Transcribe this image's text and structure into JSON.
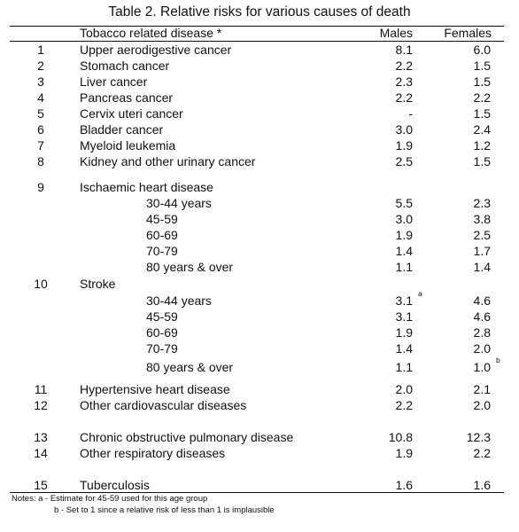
{
  "table": {
    "caption": "Table 2.  Relative risks for various causes of death",
    "header": {
      "disease": "Tobacco related disease *",
      "males": "Males",
      "females": "Females"
    },
    "rows": [
      {
        "num": "1",
        "label": "Upper aerodigestive cancer",
        "males": "8.1",
        "females": "6.0"
      },
      {
        "num": "2",
        "label": "Stomach cancer",
        "males": "2.2",
        "females": "1.5"
      },
      {
        "num": "3",
        "label": "Liver cancer",
        "males": "2.3",
        "females": "1.5"
      },
      {
        "num": "4",
        "label": "Pancreas cancer",
        "males": "2.2",
        "females": "2.2"
      },
      {
        "num": "5",
        "label": "Cervix uteri cancer",
        "males": "-",
        "females": "1.5"
      },
      {
        "num": "6",
        "label": "Bladder cancer",
        "males": "3.0",
        "females": "2.4"
      },
      {
        "num": "7",
        "label": "Myeloid leukemia",
        "males": "1.9",
        "females": "1.2"
      },
      {
        "num": "8",
        "label": "Kidney and other urinary cancer",
        "males": "2.5",
        "females": "1.5"
      },
      {
        "num": "9",
        "label": "Ischaemic heart disease",
        "males": "",
        "females": ""
      },
      {
        "num": "",
        "label": "30-44 years",
        "males": "5.5",
        "females": "2.3"
      },
      {
        "num": "",
        "label": "45-59",
        "males": "3.0",
        "females": "3.8"
      },
      {
        "num": "",
        "label": "60-69",
        "males": "1.9",
        "females": "2.5"
      },
      {
        "num": "",
        "label": "70-79",
        "males": "1.4",
        "females": "1.7"
      },
      {
        "num": "",
        "label": "80 years & over",
        "males": "1.1",
        "females": "1.4"
      },
      {
        "num": "10",
        "label": "Stroke",
        "males": "",
        "females": ""
      },
      {
        "num": "",
        "label": "30-44 years",
        "males": "3.1",
        "females": "4.6",
        "males_note": "a"
      },
      {
        "num": "",
        "label": "45-59",
        "males": "3.1",
        "females": "4.6"
      },
      {
        "num": "",
        "label": "60-69",
        "males": "1.9",
        "females": "2.8"
      },
      {
        "num": "",
        "label": "70-79",
        "males": "1.4",
        "females": "2.0"
      },
      {
        "num": "",
        "label": "80 years & over",
        "males": "1.1",
        "females": "1.0",
        "females_note": "b"
      },
      {
        "num": "11",
        "label": "Hypertensive heart disease",
        "males": "2.0",
        "females": "2.1"
      },
      {
        "num": "12",
        "label": "Other cardiovascular diseases",
        "males": "2.2",
        "females": "2.0"
      },
      {
        "num": "13",
        "label": "Chronic obstructive pulmonary disease",
        "males": "10.8",
        "females": "12.3"
      },
      {
        "num": "14",
        "label": "Other respiratory diseases",
        "males": "1.9",
        "females": "2.2"
      },
      {
        "num": "15",
        "label": "Tuberculosis",
        "males": "1.6",
        "females": "1.6"
      }
    ],
    "notes": {
      "a": "Notes: a - Estimate for 45-59 used for this age group",
      "b": "b - Set to 1 since a relative risk of less than 1 is implausible"
    }
  }
}
